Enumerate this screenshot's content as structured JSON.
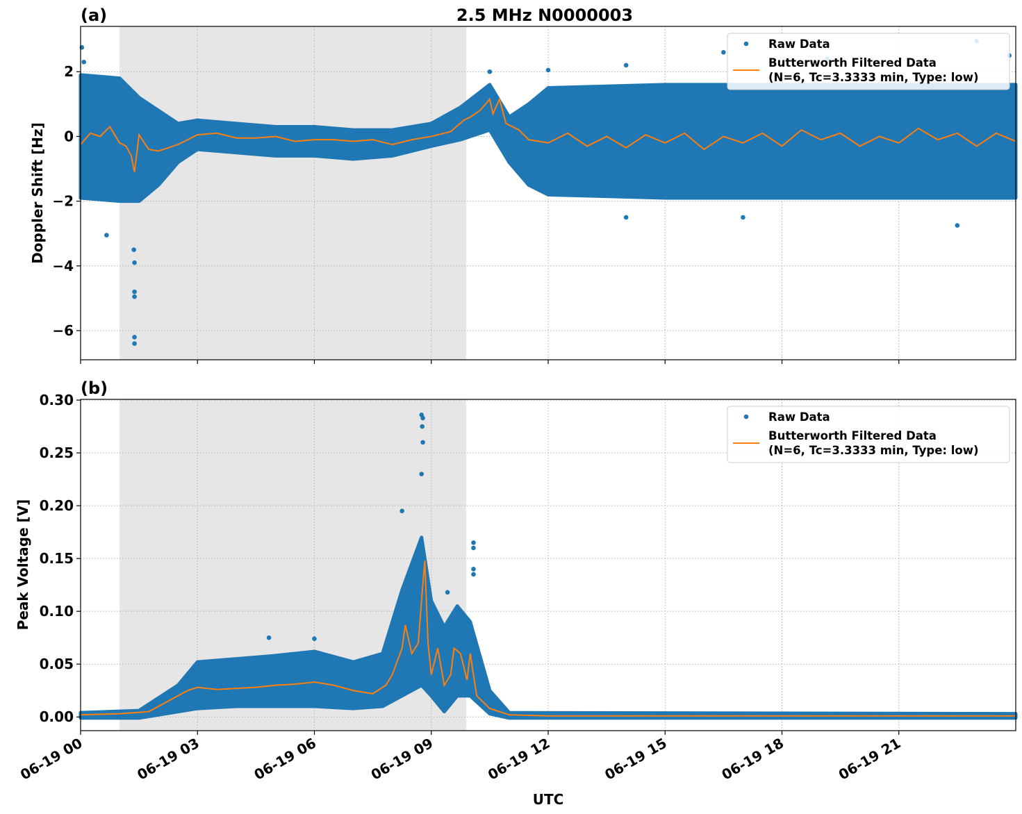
{
  "title": "2.5 MHz N0000003",
  "xlabel": "UTC",
  "x_ticks": [
    "06-19 00",
    "06-19 03",
    "06-19 06",
    "06-19 09",
    "06-19 12",
    "06-19 15",
    "06-19 18",
    "06-19 21"
  ],
  "colors": {
    "raw": "#1f77b4",
    "filtered": "#ff7f0e",
    "shade": "#e6e6e6"
  },
  "chart_data": [
    {
      "panel": "(a)",
      "type": "scatter",
      "ylabel": "Doppler Shift [Hz]",
      "xlim": [
        "06-19 00:00",
        "06-20 00:00"
      ],
      "ylim": [
        -6.9,
        3.4
      ],
      "y_ticks": [
        2,
        0,
        -2,
        -4,
        -6
      ],
      "y_tick_labels": [
        "2",
        "0",
        "−2",
        "−4",
        "−6"
      ],
      "grid": true,
      "legend_position": "top-right",
      "shaded_span": [
        "06-19 01:00",
        "06-19 09:54"
      ],
      "legend": [
        "Raw Data",
        "Butterworth Filtered Data",
        "(N=6, Tc=3.3333 min, Type: low)"
      ],
      "raw_envelope": [
        [
          "06-19 00:00",
          -1.9,
          1.9
        ],
        [
          "06-19 01:00",
          -2.0,
          1.8
        ],
        [
          "06-19 01:30",
          -2.0,
          1.2
        ],
        [
          "06-19 02:00",
          -1.5,
          0.8
        ],
        [
          "06-19 02:30",
          -0.8,
          0.4
        ],
        [
          "06-19 03:00",
          -0.4,
          0.5
        ],
        [
          "06-19 04:00",
          -0.5,
          0.4
        ],
        [
          "06-19 05:00",
          -0.6,
          0.3
        ],
        [
          "06-19 06:00",
          -0.6,
          0.3
        ],
        [
          "06-19 07:00",
          -0.7,
          0.2
        ],
        [
          "06-19 08:00",
          -0.6,
          0.2
        ],
        [
          "06-19 09:00",
          -0.3,
          0.4
        ],
        [
          "06-19 09:45",
          -0.1,
          0.9
        ],
        [
          "06-19 10:30",
          0.2,
          1.6
        ],
        [
          "06-19 11:00",
          -0.8,
          0.6
        ],
        [
          "06-19 11:30",
          -1.5,
          1.0
        ],
        [
          "06-19 12:00",
          -1.8,
          1.5
        ],
        [
          "06-19 15:00",
          -1.9,
          1.6
        ],
        [
          "06-19 18:00",
          -1.9,
          1.6
        ],
        [
          "06-19 21:00",
          -1.9,
          1.6
        ],
        [
          "06-20 00:00",
          -1.9,
          1.6
        ]
      ],
      "raw_outliers": [
        [
          "06-19 00:02",
          2.75
        ],
        [
          "06-19 00:05",
          2.3
        ],
        [
          "06-19 00:40",
          -3.05
        ],
        [
          "06-19 01:23",
          -6.4
        ],
        [
          "06-19 01:23",
          -6.2
        ],
        [
          "06-19 01:23",
          -4.95
        ],
        [
          "06-19 01:23",
          -4.8
        ],
        [
          "06-19 01:23",
          -3.9
        ],
        [
          "06-19 01:22",
          -3.5
        ],
        [
          "06-19 10:30",
          2.0
        ],
        [
          "06-19 12:00",
          2.05
        ],
        [
          "06-19 14:00",
          2.2
        ],
        [
          "06-19 16:30",
          2.6
        ],
        [
          "06-19 19:10",
          2.4
        ],
        [
          "06-19 23:00",
          2.95
        ],
        [
          "06-19 22:30",
          -2.75
        ],
        [
          "06-19 14:00",
          -2.5
        ],
        [
          "06-19 17:00",
          -2.5
        ],
        [
          "06-19 23:50",
          2.5
        ]
      ],
      "filtered": [
        [
          "06-19 00:00",
          -0.25
        ],
        [
          "06-19 00:15",
          0.1
        ],
        [
          "06-19 00:30",
          0.0
        ],
        [
          "06-19 00:45",
          0.3
        ],
        [
          "06-19 01:00",
          -0.2
        ],
        [
          "06-19 01:10",
          -0.3
        ],
        [
          "06-19 01:18",
          -0.6
        ],
        [
          "06-19 01:23",
          -1.1
        ],
        [
          "06-19 01:30",
          0.05
        ],
        [
          "06-19 01:45",
          -0.4
        ],
        [
          "06-19 02:00",
          -0.45
        ],
        [
          "06-19 02:30",
          -0.25
        ],
        [
          "06-19 03:00",
          0.05
        ],
        [
          "06-19 03:30",
          0.1
        ],
        [
          "06-19 04:00",
          -0.05
        ],
        [
          "06-19 04:30",
          -0.05
        ],
        [
          "06-19 05:00",
          0.0
        ],
        [
          "06-19 05:30",
          -0.15
        ],
        [
          "06-19 06:00",
          -0.1
        ],
        [
          "06-19 06:30",
          -0.1
        ],
        [
          "06-19 07:00",
          -0.15
        ],
        [
          "06-19 07:30",
          -0.1
        ],
        [
          "06-19 08:00",
          -0.25
        ],
        [
          "06-19 08:30",
          -0.1
        ],
        [
          "06-19 09:00",
          0.0
        ],
        [
          "06-19 09:30",
          0.15
        ],
        [
          "06-19 09:50",
          0.5
        ],
        [
          "06-19 10:00",
          0.6
        ],
        [
          "06-19 10:15",
          0.8
        ],
        [
          "06-19 10:30",
          1.15
        ],
        [
          "06-19 10:35",
          0.7
        ],
        [
          "06-19 10:45",
          1.15
        ],
        [
          "06-19 10:55",
          0.4
        ],
        [
          "06-19 11:15",
          0.2
        ],
        [
          "06-19 11:30",
          -0.1
        ],
        [
          "06-19 12:00",
          -0.2
        ],
        [
          "06-19 12:30",
          0.1
        ],
        [
          "06-19 13:00",
          -0.3
        ],
        [
          "06-19 13:30",
          0.0
        ],
        [
          "06-19 14:00",
          -0.35
        ],
        [
          "06-19 14:30",
          0.05
        ],
        [
          "06-19 15:00",
          -0.2
        ],
        [
          "06-19 15:30",
          0.1
        ],
        [
          "06-19 16:00",
          -0.4
        ],
        [
          "06-19 16:30",
          0.0
        ],
        [
          "06-19 17:00",
          -0.2
        ],
        [
          "06-19 17:30",
          0.1
        ],
        [
          "06-19 18:00",
          -0.3
        ],
        [
          "06-19 18:30",
          0.2
        ],
        [
          "06-19 19:00",
          -0.1
        ],
        [
          "06-19 19:30",
          0.1
        ],
        [
          "06-19 20:00",
          -0.3
        ],
        [
          "06-19 20:30",
          0.0
        ],
        [
          "06-19 21:00",
          -0.2
        ],
        [
          "06-19 21:30",
          0.25
        ],
        [
          "06-19 22:00",
          -0.1
        ],
        [
          "06-19 22:30",
          0.1
        ],
        [
          "06-19 23:00",
          -0.3
        ],
        [
          "06-19 23:30",
          0.1
        ],
        [
          "06-20 00:00",
          -0.15
        ]
      ]
    },
    {
      "panel": "(b)",
      "type": "scatter",
      "ylabel": "Peak Voltage [V]",
      "xlim": [
        "06-19 00:00",
        "06-20 00:00"
      ],
      "ylim": [
        -0.013,
        0.3007
      ],
      "y_ticks": [
        0.3,
        0.25,
        0.2,
        0.15,
        0.1,
        0.05,
        0.0
      ],
      "y_tick_labels": [
        "0.30",
        "0.25",
        "0.20",
        "0.15",
        "0.10",
        "0.05",
        "0.00"
      ],
      "grid": true,
      "legend_position": "top-right",
      "shaded_span": [
        "06-19 01:00",
        "06-19 09:54"
      ],
      "legend": [
        "Raw Data",
        "Butterworth Filtered Data",
        "(N=6, Tc=3.3333 min, Type: low)"
      ],
      "raw_envelope": [
        [
          "06-19 00:00",
          -0.001,
          0.004
        ],
        [
          "06-19 01:30",
          -0.001,
          0.006
        ],
        [
          "06-19 02:30",
          0.005,
          0.03
        ],
        [
          "06-19 03:00",
          0.008,
          0.052
        ],
        [
          "06-19 04:00",
          0.01,
          0.055
        ],
        [
          "06-19 05:00",
          0.01,
          0.058
        ],
        [
          "06-19 06:00",
          0.01,
          0.062
        ],
        [
          "06-19 07:00",
          0.008,
          0.052
        ],
        [
          "06-19 07:45",
          0.01,
          0.06
        ],
        [
          "06-19 08:15",
          0.02,
          0.12
        ],
        [
          "06-19 08:45",
          0.03,
          0.17
        ],
        [
          "06-19 09:00",
          0.02,
          0.11
        ],
        [
          "06-19 09:20",
          0.005,
          0.085
        ],
        [
          "06-19 09:40",
          0.02,
          0.105
        ],
        [
          "06-19 10:00",
          0.02,
          0.09
        ],
        [
          "06-19 10:30",
          0.003,
          0.025
        ],
        [
          "06-19 11:00",
          -0.001,
          0.004
        ],
        [
          "06-20 00:00",
          -0.001,
          0.003
        ]
      ],
      "raw_outliers": [
        [
          "06-19 08:45",
          0.286
        ],
        [
          "06-19 08:47",
          0.283
        ],
        [
          "06-19 08:46",
          0.275
        ],
        [
          "06-19 08:47",
          0.26
        ],
        [
          "06-19 08:45",
          0.23
        ],
        [
          "06-19 08:15",
          0.195
        ],
        [
          "06-19 10:05",
          0.165
        ],
        [
          "06-19 10:05",
          0.16
        ],
        [
          "06-19 10:05",
          0.14
        ],
        [
          "06-19 10:05",
          0.135
        ],
        [
          "06-19 04:50",
          0.075
        ],
        [
          "06-19 06:00",
          0.074
        ],
        [
          "06-19 09:25",
          0.118
        ]
      ],
      "filtered": [
        [
          "06-19 00:00",
          0.002
        ],
        [
          "06-19 01:00",
          0.003
        ],
        [
          "06-19 01:45",
          0.005
        ],
        [
          "06-19 02:15",
          0.015
        ],
        [
          "06-19 02:45",
          0.025
        ],
        [
          "06-19 03:00",
          0.028
        ],
        [
          "06-19 03:30",
          0.026
        ],
        [
          "06-19 04:00",
          0.027
        ],
        [
          "06-19 04:30",
          0.028
        ],
        [
          "06-19 05:00",
          0.03
        ],
        [
          "06-19 05:30",
          0.031
        ],
        [
          "06-19 06:00",
          0.033
        ],
        [
          "06-19 06:30",
          0.03
        ],
        [
          "06-19 07:00",
          0.025
        ],
        [
          "06-19 07:30",
          0.022
        ],
        [
          "06-19 07:50",
          0.03
        ],
        [
          "06-19 08:00",
          0.04
        ],
        [
          "06-19 08:15",
          0.065
        ],
        [
          "06-19 08:20",
          0.087
        ],
        [
          "06-19 08:30",
          0.06
        ],
        [
          "06-19 08:40",
          0.07
        ],
        [
          "06-19 08:45",
          0.11
        ],
        [
          "06-19 08:50",
          0.148
        ],
        [
          "06-19 08:55",
          0.07
        ],
        [
          "06-19 09:00",
          0.04
        ],
        [
          "06-19 09:10",
          0.065
        ],
        [
          "06-19 09:20",
          0.03
        ],
        [
          "06-19 09:30",
          0.04
        ],
        [
          "06-19 09:35",
          0.065
        ],
        [
          "06-19 09:45",
          0.06
        ],
        [
          "06-19 09:55",
          0.035
        ],
        [
          "06-19 10:00",
          0.06
        ],
        [
          "06-19 10:10",
          0.02
        ],
        [
          "06-19 10:30",
          0.008
        ],
        [
          "06-19 11:00",
          0.002
        ],
        [
          "06-19 12:00",
          0.001
        ],
        [
          "06-20 00:00",
          0.001
        ]
      ]
    }
  ]
}
